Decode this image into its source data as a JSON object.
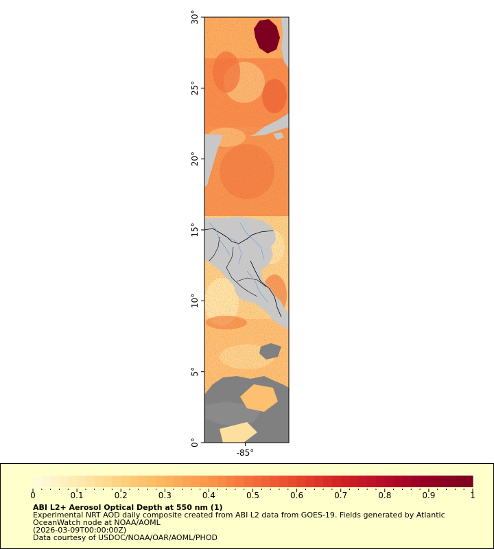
{
  "map": {
    "lat_ticks": [
      {
        "value": 0,
        "label": "0°"
      },
      {
        "value": 5,
        "label": "5°"
      },
      {
        "value": 10,
        "label": "10°"
      },
      {
        "value": 15,
        "label": "15°"
      },
      {
        "value": 20,
        "label": "20°"
      },
      {
        "value": 25,
        "label": "25°"
      },
      {
        "value": 30,
        "label": "30°"
      }
    ],
    "lon_ticks": [
      {
        "value": -85,
        "label": "-85°"
      }
    ],
    "lat_range": [
      0,
      30
    ],
    "lon_range": [
      -87.9,
      -81.9
    ],
    "colors": {
      "land": "#c8c8c8",
      "no_data": "#808080",
      "border": "#000000",
      "rivers": "#6f9bd1"
    }
  },
  "colorbar": {
    "min": 0,
    "max": 1,
    "tick_labels": [
      "0",
      "0.1",
      "0.2",
      "0.3",
      "0.4",
      "0.5",
      "0.6",
      "0.7",
      "0.8",
      "0.9",
      "1"
    ],
    "stops": [
      "#fffbd9",
      "#ffe9ad",
      "#fed07c",
      "#fdb45e",
      "#fb9549",
      "#f46d3b",
      "#e8482e",
      "#d42223",
      "#b80d27",
      "#950024",
      "#7d0021"
    ]
  },
  "legend": {
    "title": "ABI L2+ Aerosol Optical Depth at 550 nm (1)",
    "line1": "Experimental NRT AOD daily composite created from ABI L2 data from GOES-19. Fields generated by Atlantic",
    "line2": "OceanWatch node at NOAA/AOML",
    "line3": "(2026-03-09T00:00:00Z)",
    "line4": "Data courtesy of USDOC/NOAA/OAR/AOML/PHOD"
  }
}
